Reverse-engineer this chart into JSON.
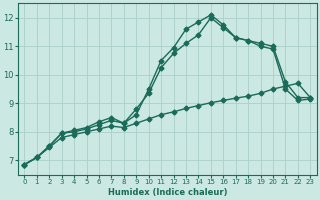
{
  "xlabel": "Humidex (Indice chaleur)",
  "xlim": [
    -0.5,
    23.5
  ],
  "ylim": [
    6.5,
    12.5
  ],
  "xticks": [
    0,
    1,
    2,
    3,
    4,
    5,
    6,
    7,
    8,
    9,
    10,
    11,
    12,
    13,
    14,
    15,
    16,
    17,
    18,
    19,
    20,
    21,
    22,
    23
  ],
  "yticks": [
    7,
    8,
    9,
    10,
    11,
    12
  ],
  "background_color": "#cce8e2",
  "grid_color": "#aad0c8",
  "line_color": "#1a6b5a",
  "line1_x": [
    0,
    1,
    2,
    3,
    4,
    5,
    6,
    7,
    8,
    9,
    10,
    11,
    12,
    13,
    14,
    15,
    16,
    17,
    18,
    19,
    20,
    21,
    22,
    23
  ],
  "line1_y": [
    6.85,
    7.1,
    7.5,
    7.95,
    8.0,
    8.1,
    8.25,
    8.4,
    8.3,
    8.6,
    9.5,
    10.5,
    10.95,
    11.6,
    11.85,
    12.1,
    11.75,
    11.3,
    11.2,
    11.1,
    11.0,
    9.75,
    9.2,
    9.2
  ],
  "line2_x": [
    0,
    1,
    2,
    3,
    4,
    5,
    6,
    7,
    8,
    9,
    10,
    11,
    12,
    13,
    14,
    15,
    16,
    17,
    18,
    19,
    20,
    21,
    22,
    23
  ],
  "line2_y": [
    6.85,
    7.1,
    7.5,
    7.95,
    8.05,
    8.15,
    8.35,
    8.5,
    8.3,
    8.8,
    9.35,
    10.25,
    10.75,
    11.1,
    11.4,
    12.0,
    11.65,
    11.3,
    11.2,
    11.0,
    10.9,
    9.5,
    9.1,
    9.15
  ],
  "line3_x": [
    0,
    1,
    2,
    3,
    4,
    5,
    6,
    7,
    8,
    9,
    10,
    11,
    12,
    13,
    14,
    15,
    16,
    17,
    18,
    19,
    20,
    21,
    22,
    23
  ],
  "line3_y": [
    6.85,
    7.1,
    7.45,
    7.8,
    7.9,
    8.0,
    8.1,
    8.2,
    8.15,
    8.3,
    8.45,
    8.6,
    8.7,
    8.82,
    8.92,
    9.02,
    9.1,
    9.18,
    9.25,
    9.35,
    9.5,
    9.6,
    9.7,
    9.2
  ],
  "marker": "D",
  "marker_size": 2.5,
  "line_width": 1.0
}
